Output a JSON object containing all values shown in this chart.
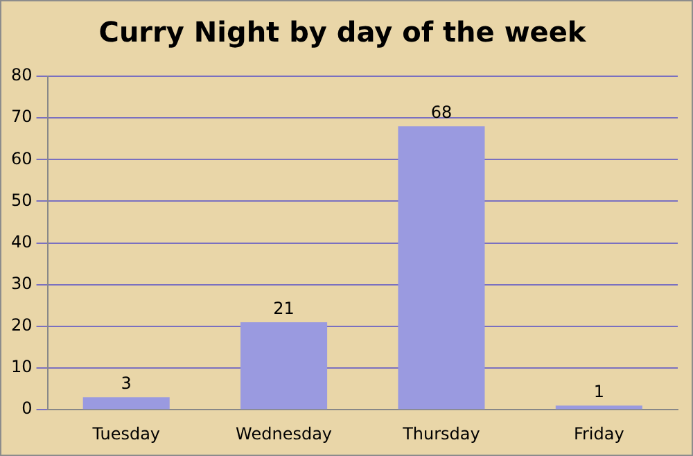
{
  "chart_data": {
    "type": "bar",
    "title": "Curry Night by day of the week",
    "categories": [
      "Tuesday",
      "Wednesday",
      "Thursday",
      "Friday"
    ],
    "values": [
      3,
      21,
      68,
      1
    ],
    "color": "#9a9ae0",
    "ylim": [
      0,
      80
    ],
    "yticks": [
      0,
      10,
      20,
      30,
      40,
      50,
      60,
      70,
      80
    ],
    "grid": "y",
    "data_labels": true
  }
}
